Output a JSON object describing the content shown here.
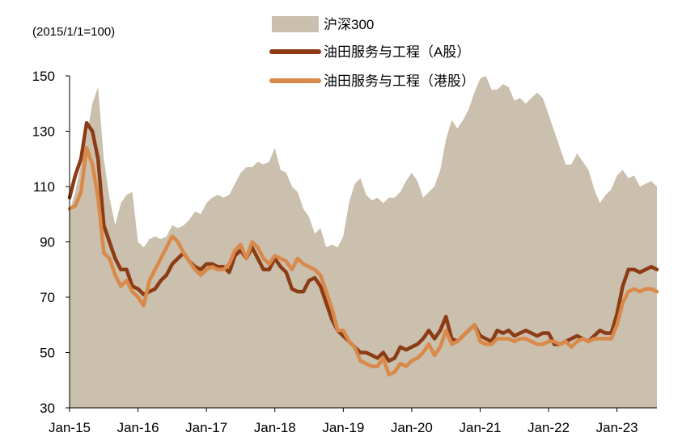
{
  "chart_data": {
    "type": "area",
    "unit_note": "(2015/1/1=100)",
    "ylim": [
      30,
      150
    ],
    "yticks": [
      30,
      50,
      70,
      90,
      110,
      130,
      150
    ],
    "xticks": [
      "Jan-15",
      "Jan-16",
      "Jan-17",
      "Jan-18",
      "Jan-19",
      "Jan-20",
      "Jan-21",
      "Jan-22",
      "Jan-23"
    ],
    "x_range": [
      "2015-01",
      "2023-08"
    ],
    "grid": false,
    "legend_position": "top-center",
    "x": [
      "2015-01",
      "2015-02",
      "2015-03",
      "2015-04",
      "2015-05",
      "2015-06",
      "2015-07",
      "2015-08",
      "2015-09",
      "2015-10",
      "2015-11",
      "2015-12",
      "2016-01",
      "2016-02",
      "2016-03",
      "2016-04",
      "2016-05",
      "2016-06",
      "2016-07",
      "2016-08",
      "2016-09",
      "2016-10",
      "2016-11",
      "2016-12",
      "2017-01",
      "2017-02",
      "2017-03",
      "2017-04",
      "2017-05",
      "2017-06",
      "2017-07",
      "2017-08",
      "2017-09",
      "2017-10",
      "2017-11",
      "2017-12",
      "2018-01",
      "2018-02",
      "2018-03",
      "2018-04",
      "2018-05",
      "2018-06",
      "2018-07",
      "2018-08",
      "2018-09",
      "2018-10",
      "2018-11",
      "2018-12",
      "2019-01",
      "2019-02",
      "2019-03",
      "2019-04",
      "2019-05",
      "2019-06",
      "2019-07",
      "2019-08",
      "2019-09",
      "2019-10",
      "2019-11",
      "2019-12",
      "2020-01",
      "2020-02",
      "2020-03",
      "2020-04",
      "2020-05",
      "2020-06",
      "2020-07",
      "2020-08",
      "2020-09",
      "2020-10",
      "2020-11",
      "2020-12",
      "2021-01",
      "2021-02",
      "2021-03",
      "2021-04",
      "2021-05",
      "2021-06",
      "2021-07",
      "2021-08",
      "2021-09",
      "2021-10",
      "2021-11",
      "2021-12",
      "2022-01",
      "2022-02",
      "2022-03",
      "2022-04",
      "2022-05",
      "2022-06",
      "2022-07",
      "2022-08",
      "2022-09",
      "2022-10",
      "2022-11",
      "2022-12",
      "2023-01",
      "2023-02",
      "2023-03",
      "2023-04",
      "2023-05",
      "2023-06",
      "2023-07",
      "2023-08"
    ],
    "series": [
      {
        "name": "沪深300",
        "kind": "area",
        "color": "#cbbfad",
        "values": [
          101,
          108,
          118,
          128,
          140,
          146,
          120,
          106,
          96,
          104,
          107,
          108,
          90,
          88,
          91,
          92,
          91,
          92,
          96,
          95,
          96,
          98,
          101,
          100,
          104,
          106,
          107,
          106,
          107,
          111,
          115,
          117,
          117,
          119,
          118,
          119,
          124,
          116,
          115,
          110,
          108,
          102,
          99,
          93,
          95,
          88,
          89,
          88,
          92,
          104,
          111,
          113,
          107,
          105,
          106,
          104,
          106,
          106,
          108,
          112,
          115,
          112,
          106,
          108,
          110,
          116,
          127,
          134,
          131,
          134,
          138,
          144,
          149,
          150,
          145,
          145,
          147,
          146,
          141,
          142,
          140,
          142,
          144,
          142,
          136,
          130,
          124,
          118,
          118,
          122,
          119,
          116,
          109,
          104,
          107,
          109,
          114,
          116,
          113,
          114,
          110,
          111,
          112,
          110
        ]
      },
      {
        "name": "油田服务与工程（A股）",
        "kind": "line",
        "color": "#8b3c14",
        "values": [
          106,
          114,
          120,
          133,
          130,
          120,
          96,
          90,
          84,
          80,
          80,
          74,
          73,
          71,
          72,
          73,
          76,
          78,
          82,
          84,
          86,
          83,
          81,
          80,
          82,
          82,
          81,
          81,
          79,
          85,
          87,
          84,
          88,
          84,
          80,
          80,
          84,
          81,
          79,
          73,
          72,
          72,
          76,
          77,
          74,
          68,
          62,
          58,
          56,
          54,
          52,
          50,
          50,
          49,
          48,
          50,
          47,
          48,
          52,
          51,
          52,
          53,
          55,
          58,
          55,
          58,
          63,
          55,
          54,
          56,
          58,
          60,
          56,
          55,
          54,
          58,
          57,
          58,
          56,
          57,
          58,
          57,
          56,
          57,
          57,
          53,
          53,
          54,
          55,
          56,
          55,
          54,
          56,
          58,
          57,
          57,
          64,
          74,
          80,
          80,
          79,
          80,
          81,
          80
        ]
      },
      {
        "name": "油田服务与工程（港股）",
        "kind": "line",
        "color": "#d9894a",
        "values": [
          102,
          103,
          108,
          124,
          118,
          106,
          86,
          84,
          78,
          74,
          76,
          72,
          70,
          67,
          76,
          80,
          84,
          88,
          92,
          90,
          86,
          83,
          80,
          78,
          80,
          81,
          80,
          80,
          82,
          87,
          89,
          84,
          90,
          88,
          84,
          82,
          85,
          84,
          83,
          80,
          84,
          82,
          81,
          80,
          78,
          72,
          66,
          58,
          58,
          54,
          52,
          47,
          46,
          45,
          45,
          48,
          42,
          43,
          46,
          45,
          47,
          48,
          50,
          53,
          49,
          52,
          58,
          53,
          54,
          56,
          58,
          60,
          54,
          53,
          53,
          55,
          55,
          55,
          54,
          55,
          55,
          54,
          53,
          53,
          54,
          54,
          53,
          54,
          52,
          54,
          55,
          54,
          55,
          55,
          55,
          55,
          60,
          68,
          72,
          73,
          72,
          73,
          73,
          72
        ]
      }
    ]
  }
}
